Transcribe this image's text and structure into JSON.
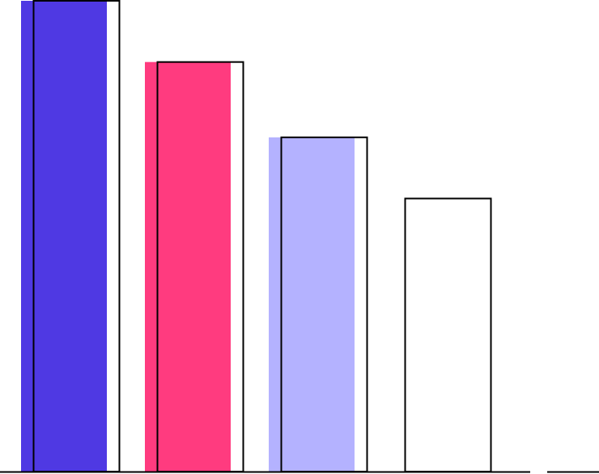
{
  "chart_data": {
    "type": "bar",
    "categories": [
      "",
      "",
      "",
      ""
    ],
    "values": [
      100,
      87,
      71,
      58
    ],
    "fill_colors": [
      "#4F39E3",
      "#FF3B7F",
      "#B4B2FF",
      null
    ],
    "outline_color": "#000000",
    "ylim": [
      0,
      100
    ],
    "grid": false,
    "legend": "none",
    "title": "",
    "xlabel": "",
    "ylabel": ""
  }
}
